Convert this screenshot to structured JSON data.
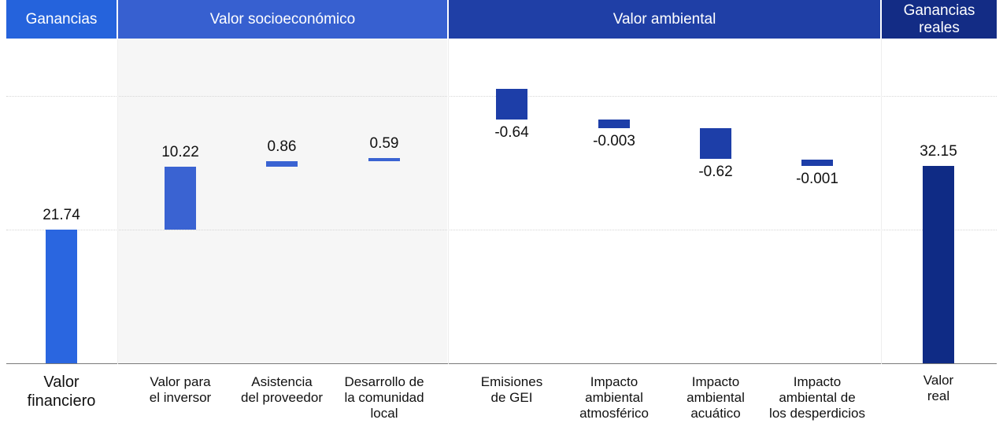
{
  "chart_data": {
    "type": "bar",
    "subtype": "waterfall",
    "groups": [
      {
        "label": "Ganancias",
        "color": "#2563dc"
      },
      {
        "label": "Valor socioeconómico",
        "color": "#3760d0"
      },
      {
        "label": "Valor ambiental",
        "color": "#1f3fa6"
      },
      {
        "label": "Ganancias\nreales",
        "color": "#132c85"
      }
    ],
    "categories": [
      "Valor\nfinanciero",
      "Valor para\nel inversor",
      "Asistencia\ndel proveedor",
      "Desarrollo de\nla comunidad\nlocal",
      "Emisiones\nde GEI",
      "Impacto\nambiental\natmosférico",
      "Impacto\nambiental\nacuático",
      "Impacto\nambiental de\nlos desperdicios",
      "Valor\nreal"
    ],
    "values": [
      21.74,
      10.22,
      0.86,
      0.59,
      -0.64,
      -0.003,
      -0.62,
      -0.001,
      32.15
    ],
    "value_labels": [
      "21.74",
      "10.22",
      "0.86",
      "0.59",
      "-0.64",
      "-0.003",
      "-0.62",
      "-0.001",
      "32.15"
    ],
    "bar_types": [
      "total",
      "delta",
      "delta",
      "delta",
      "delta",
      "delta",
      "delta",
      "delta",
      "total"
    ],
    "bar_groups": [
      0,
      1,
      1,
      1,
      2,
      2,
      2,
      2,
      3
    ],
    "colors": {
      "financiero": "#2a66e0",
      "socioeconomico": "#3a63d2",
      "ambiental": "#1d3ea8",
      "real": "#0f2b85"
    },
    "shaded_group": 1,
    "grid": true,
    "legend": "none"
  }
}
